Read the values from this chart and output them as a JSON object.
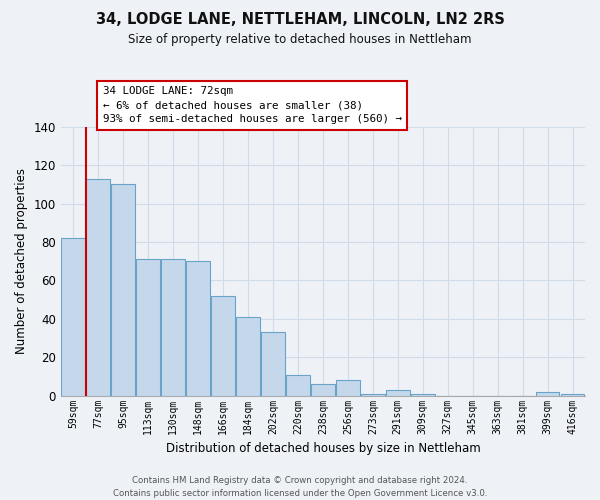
{
  "title": "34, LODGE LANE, NETTLEHAM, LINCOLN, LN2 2RS",
  "subtitle": "Size of property relative to detached houses in Nettleham",
  "xlabel": "Distribution of detached houses by size in Nettleham",
  "ylabel": "Number of detached properties",
  "bin_labels": [
    "59sqm",
    "77sqm",
    "95sqm",
    "113sqm",
    "130sqm",
    "148sqm",
    "166sqm",
    "184sqm",
    "202sqm",
    "220sqm",
    "238sqm",
    "256sqm",
    "273sqm",
    "291sqm",
    "309sqm",
    "327sqm",
    "345sqm",
    "363sqm",
    "381sqm",
    "399sqm",
    "416sqm"
  ],
  "bar_values": [
    82,
    113,
    110,
    71,
    71,
    70,
    52,
    41,
    33,
    11,
    6,
    8,
    1,
    3,
    1,
    0,
    0,
    0,
    0,
    2,
    1
  ],
  "bar_color": "#c5d8eb",
  "bar_edge_color": "#6aa3c8",
  "annotation_title": "34 LODGE LANE: 72sqm",
  "annotation_line1": "← 6% of detached houses are smaller (38)",
  "annotation_line2": "93% of semi-detached houses are larger (560) →",
  "annotation_box_facecolor": "#ffffff",
  "annotation_box_edgecolor": "#cc0000",
  "marker_line_color": "#cc0000",
  "ylim": [
    0,
    140
  ],
  "yticks": [
    0,
    20,
    40,
    60,
    80,
    100,
    120,
    140
  ],
  "footer1": "Contains HM Land Registry data © Crown copyright and database right 2024.",
  "footer2": "Contains public sector information licensed under the Open Government Licence v3.0.",
  "background_color": "#eef2f7",
  "grid_color": "#d0dce8"
}
